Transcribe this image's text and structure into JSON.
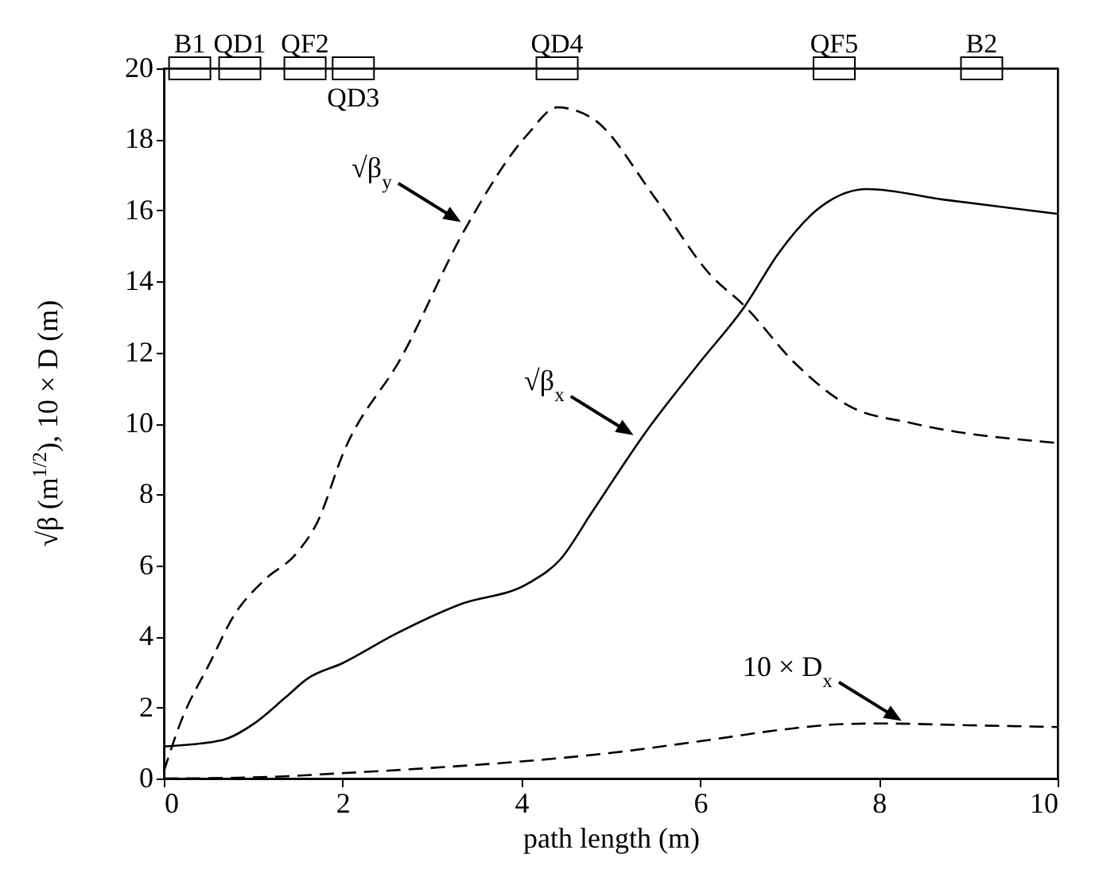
{
  "chart_data": {
    "type": "line",
    "xlabel": "path length (m)",
    "ylabel": "√β (m$^{1/2}$), 10 × D (m)",
    "xlim": [
      0,
      10
    ],
    "ylim": [
      0,
      20
    ],
    "xticks": [
      0,
      2,
      4,
      6,
      8,
      10
    ],
    "yticks": [
      0,
      2,
      4,
      6,
      8,
      10,
      12,
      14,
      16,
      18,
      20
    ],
    "series": [
      {
        "color": "#000000",
        "line_style": "solid",
        "x": [
          0,
          0.65,
          1.0,
          1.36,
          1.6,
          2.0,
          2.6,
          3.31,
          4.08,
          4.44,
          4.79,
          5.39,
          5.99,
          6.5,
          6.88,
          7.3,
          7.87,
          8.73,
          10.0
        ],
        "values": [
          0.9,
          1.08,
          1.53,
          2.28,
          2.8,
          3.25,
          4.08,
          4.9,
          5.5,
          6.18,
          7.5,
          9.75,
          11.7,
          13.3,
          14.8,
          16.0,
          16.6,
          16.3,
          15.9
        ]
      },
      {
        "color": "#000000",
        "line_style": "dashed",
        "x": [
          0,
          0.18,
          0.53,
          0.77,
          1.12,
          1.48,
          1.72,
          2.01,
          2.66,
          3.37,
          4.08,
          4.4,
          4.79,
          5.51,
          6.11,
          6.5,
          7.06,
          7.66,
          8.38,
          10.0
        ],
        "values": [
          0.2,
          1.53,
          3.33,
          4.53,
          5.58,
          6.33,
          7.23,
          9.18,
          11.87,
          15.47,
          18.17,
          18.9,
          18.6,
          16.3,
          14.2,
          13.3,
          11.7,
          10.5,
          10.0,
          9.45
        ]
      },
      {
        "color": "#000000",
        "line_style": "dashed",
        "x": [
          0,
          1,
          2,
          3,
          4,
          5,
          6,
          7,
          7.5,
          8,
          9,
          10
        ],
        "values": [
          0,
          0.03,
          0.15,
          0.3,
          0.48,
          0.72,
          1.05,
          1.4,
          1.52,
          1.55,
          1.5,
          1.45
        ]
      }
    ],
    "annotations": [
      {
        "text": "√β$_{y}$",
        "x": 3.37,
        "y": 15.6
      },
      {
        "text": "√β$_{x}$",
        "x": 5.3,
        "y": 9.6
      },
      {
        "text": "10 × D$_{x}$",
        "x": 8.3,
        "y": 1.55
      },
      {
        "text": "B1",
        "x": 0.29,
        "y": 20
      },
      {
        "text": "QD1",
        "x": 0.85,
        "y": 20
      },
      {
        "text": "QF2",
        "x": 1.58,
        "y": 20
      },
      {
        "text": "QD3",
        "x": 2.12,
        "y": 20
      },
      {
        "text": "QD4",
        "x": 4.4,
        "y": 20
      },
      {
        "text": "QF5",
        "x": 7.5,
        "y": 20
      },
      {
        "text": "B2",
        "x": 9.15,
        "y": 20
      }
    ]
  }
}
